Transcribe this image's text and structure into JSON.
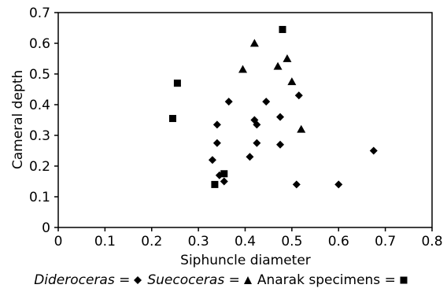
{
  "chart_data": {
    "type": "scatter",
    "xlabel": "Siphuncle diameter",
    "ylabel": "Cameral depth",
    "xlim": [
      0,
      0.8
    ],
    "ylim": [
      0,
      0.7
    ],
    "xticks": [
      "0",
      "0.1",
      "0.2",
      "0.3",
      "0.4",
      "0.5",
      "0.6",
      "0.7",
      "0.8"
    ],
    "yticks": [
      "0",
      "0.1",
      "0.2",
      "0.3",
      "0.4",
      "0.5",
      "0.6",
      "0.7"
    ],
    "grid": false,
    "legend_position": "bottom",
    "series": [
      {
        "name": "Dideroceras",
        "legend_label": "Dideroceras =",
        "marker": "diamond",
        "color": "#000000",
        "points": [
          [
            0.33,
            0.22
          ],
          [
            0.34,
            0.335
          ],
          [
            0.34,
            0.275
          ],
          [
            0.345,
            0.17
          ],
          [
            0.355,
            0.15
          ],
          [
            0.365,
            0.41
          ],
          [
            0.41,
            0.23
          ],
          [
            0.42,
            0.35
          ],
          [
            0.425,
            0.275
          ],
          [
            0.425,
            0.335
          ],
          [
            0.445,
            0.41
          ],
          [
            0.475,
            0.36
          ],
          [
            0.475,
            0.27
          ],
          [
            0.51,
            0.14
          ],
          [
            0.515,
            0.43
          ],
          [
            0.6,
            0.14
          ],
          [
            0.675,
            0.25
          ]
        ]
      },
      {
        "name": "Suecoceras",
        "legend_label": "Suecoceras =",
        "marker": "triangle",
        "color": "#000000",
        "points": [
          [
            0.395,
            0.515
          ],
          [
            0.42,
            0.6
          ],
          [
            0.47,
            0.525
          ],
          [
            0.49,
            0.55
          ],
          [
            0.5,
            0.475
          ],
          [
            0.52,
            0.32
          ]
        ]
      },
      {
        "name": "Anarak specimens",
        "legend_label": "Anarak specimens =",
        "marker": "square",
        "color": "#000000",
        "points": [
          [
            0.245,
            0.355
          ],
          [
            0.255,
            0.47
          ],
          [
            0.335,
            0.14
          ],
          [
            0.355,
            0.175
          ],
          [
            0.48,
            0.645
          ]
        ]
      }
    ]
  }
}
